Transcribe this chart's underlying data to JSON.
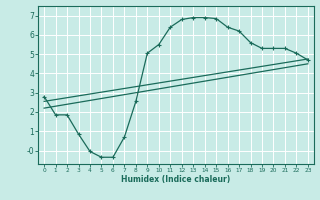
{
  "xlabel": "Humidex (Indice chaleur)",
  "bg_color": "#c8ebe6",
  "grid_color": "#ffffff",
  "line_color": "#1a6b5a",
  "xlim": [
    -0.5,
    23.5
  ],
  "ylim": [
    -0.7,
    7.5
  ],
  "xticks": [
    0,
    1,
    2,
    3,
    4,
    5,
    6,
    7,
    8,
    9,
    10,
    11,
    12,
    13,
    14,
    15,
    16,
    17,
    18,
    19,
    20,
    21,
    22,
    23
  ],
  "yticks": [
    0,
    1,
    2,
    3,
    4,
    5,
    6,
    7
  ],
  "ytick_labels": [
    "-0",
    "1",
    "2",
    "3",
    "4",
    "5",
    "6",
    "7"
  ],
  "line1_x": [
    0,
    1,
    2,
    3,
    4,
    5,
    6,
    7,
    8,
    9,
    10,
    11,
    12,
    13,
    14,
    15,
    16,
    17,
    18,
    19,
    20,
    21,
    22,
    23
  ],
  "line1_y": [
    2.8,
    1.85,
    1.85,
    0.85,
    -0.05,
    -0.35,
    -0.35,
    0.7,
    2.55,
    5.05,
    5.5,
    6.4,
    6.8,
    6.9,
    6.9,
    6.85,
    6.4,
    6.2,
    5.6,
    5.3,
    5.3,
    5.3,
    5.05,
    4.7
  ],
  "line2_x": [
    0,
    23
  ],
  "line2_y": [
    2.55,
    4.75
  ],
  "line3_x": [
    0,
    23
  ],
  "line3_y": [
    2.2,
    4.5
  ]
}
